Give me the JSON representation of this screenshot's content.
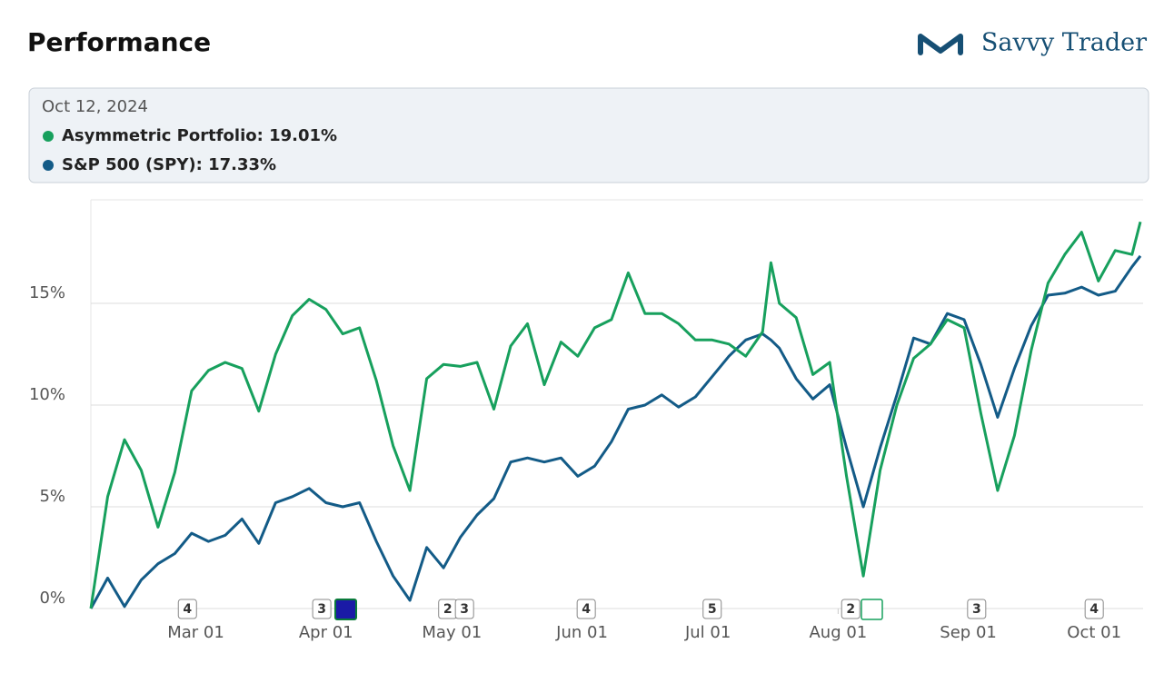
{
  "header": {
    "title": "Performance",
    "brand": "Savvy Trader"
  },
  "tooltip": {
    "date": "Oct 12, 2024",
    "items": [
      "Asymmetric Portfolio: 19.01%",
      "S&P 500 (SPY): 17.33%"
    ]
  },
  "chart_data": {
    "type": "line",
    "x": [
      "Feb 05",
      "Feb 09",
      "Feb 13",
      "Feb 17",
      "Feb 21",
      "Feb 25",
      "Feb 29",
      "Mar 04",
      "Mar 08",
      "Mar 12",
      "Mar 16",
      "Mar 20",
      "Mar 24",
      "Mar 28",
      "Apr 01",
      "Apr 05",
      "Apr 09",
      "Apr 13",
      "Apr 17",
      "Apr 21",
      "Apr 25",
      "Apr 29",
      "May 03",
      "May 07",
      "May 11",
      "May 15",
      "May 19",
      "May 23",
      "May 27",
      "May 31",
      "Jun 04",
      "Jun 08",
      "Jun 12",
      "Jun 16",
      "Jun 20",
      "Jun 24",
      "Jun 28",
      "Jul 02",
      "Jul 06",
      "Jul 10",
      "Jul 14",
      "Jul 16",
      "Jul 18",
      "Jul 22",
      "Jul 26",
      "Jul 30",
      "Aug 03",
      "Aug 07",
      "Aug 11",
      "Aug 15",
      "Aug 19",
      "Aug 23",
      "Aug 27",
      "Aug 31",
      "Sep 04",
      "Sep 08",
      "Sep 12",
      "Sep 16",
      "Sep 20",
      "Sep 24",
      "Sep 28",
      "Oct 02",
      "Oct 06",
      "Oct 10",
      "Oct 12"
    ],
    "series": [
      {
        "name": "Asymmetric Portfolio",
        "color": "#17a05d",
        "values": [
          0,
          5.5,
          8.3,
          6.8,
          4.0,
          6.7,
          10.7,
          11.7,
          12.1,
          11.8,
          9.7,
          12.5,
          14.4,
          15.2,
          14.7,
          13.5,
          13.8,
          11.2,
          8.0,
          5.8,
          11.3,
          12.0,
          11.9,
          12.1,
          9.8,
          12.9,
          14.0,
          11.0,
          13.1,
          12.4,
          13.8,
          14.2,
          16.5,
          14.5,
          14.5,
          14.0,
          13.2,
          13.2,
          13.0,
          12.4,
          13.6,
          17.0,
          15.0,
          14.3,
          11.5,
          12.1,
          6.5,
          1.6,
          6.8,
          10.0,
          12.3,
          13.0,
          14.2,
          13.8,
          9.6,
          5.8,
          8.5,
          12.7,
          16.0,
          17.4,
          18.5,
          16.1,
          17.6,
          17.4,
          19.01
        ]
      },
      {
        "name": "S&P 500 (SPY)",
        "color": "#135b87",
        "values": [
          0,
          1.5,
          0.1,
          1.4,
          2.2,
          2.7,
          3.7,
          3.3,
          3.6,
          4.4,
          3.2,
          5.2,
          5.5,
          5.9,
          5.2,
          5.0,
          5.2,
          3.3,
          1.6,
          0.4,
          3.0,
          2.0,
          3.5,
          4.6,
          5.4,
          7.2,
          7.4,
          7.2,
          7.4,
          6.5,
          7.0,
          8.2,
          9.8,
          10.0,
          10.5,
          9.9,
          10.4,
          11.4,
          12.4,
          13.2,
          13.5,
          13.2,
          12.8,
          11.3,
          10.3,
          11.0,
          7.9,
          5.0,
          7.9,
          10.5,
          13.3,
          13.0,
          14.5,
          14.2,
          12.0,
          9.4,
          11.8,
          13.9,
          15.4,
          15.5,
          15.8,
          15.4,
          15.6,
          16.8,
          17.33
        ]
      }
    ],
    "xlim": [
      "Feb 05",
      "Oct 12"
    ],
    "xticks": [
      "Mar 01",
      "Apr 01",
      "May 01",
      "Jun 01",
      "Jul 01",
      "Aug 01",
      "Sep 01",
      "Oct 01"
    ],
    "ylim": [
      0,
      20
    ],
    "yticks": [
      {
        "value": 0,
        "label": "0%"
      },
      {
        "value": 5,
        "label": "5%"
      },
      {
        "value": 10,
        "label": "10%"
      },
      {
        "value": 15,
        "label": "15%"
      }
    ],
    "grid": true,
    "events": [
      {
        "x": "Feb 28",
        "label": "4"
      },
      {
        "x": "Mar 31",
        "label": "3"
      },
      {
        "x": "Apr 30",
        "label": "2"
      },
      {
        "x": "May 04",
        "label": "3"
      },
      {
        "x": "Jun 02",
        "label": "4"
      },
      {
        "x": "Jul 02",
        "label": "5"
      },
      {
        "x": "Aug 04",
        "label": "2"
      },
      {
        "x": "Sep 03",
        "label": "3"
      },
      {
        "x": "Oct 01",
        "label": "4"
      }
    ]
  }
}
